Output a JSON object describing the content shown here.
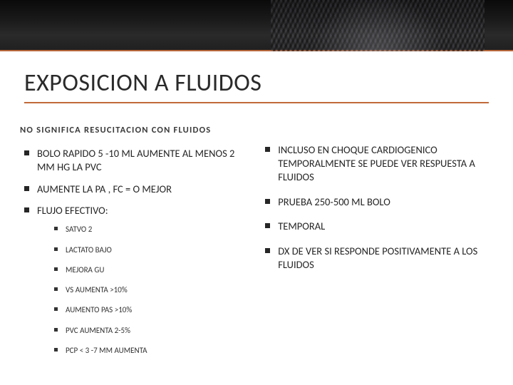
{
  "colors": {
    "accent": "#c06a3a",
    "text": "#262626",
    "subtitle": "#3a3a3a",
    "background": "#ffffff"
  },
  "typography": {
    "title_fontsize": 34,
    "subtitle_fontsize": 12.5,
    "body_fontsize": 14.5,
    "sub_fontsize": 11,
    "font_family": "Calibri"
  },
  "title": "EXPOSICION A FLUIDOS",
  "left": {
    "subtitle": "NO SIGNIFICA RESUCITACION CON FLUIDOS",
    "items": [
      "BOLO RAPIDO 5 -10 ML AUMENTE AL MENOS 2 MM HG LA PVC",
      "AUMENTE LA PA , FC = O MEJOR",
      "FLUJO EFECTIVO:"
    ],
    "subitems": [
      "SATVO 2",
      "LACTATO BAJO",
      "MEJORA GU",
      "VS AUMENTA >10%",
      "AUMENTO PAS >10%",
      "PVC AUMENTA 2-5%",
      "PCP < 3 -7 MM AUMENTA"
    ]
  },
  "right": {
    "items": [
      "INCLUSO EN CHOQUE CARDIOGENICO TEMPORALMENTE SE PUEDE VER RESPUESTA A FLUIDOS",
      "PRUEBA 250-500 ML BOLO",
      "TEMPORAL",
      "DX DE VER SI RESPONDE POSITIVAMENTE A LOS FLUIDOS"
    ]
  }
}
